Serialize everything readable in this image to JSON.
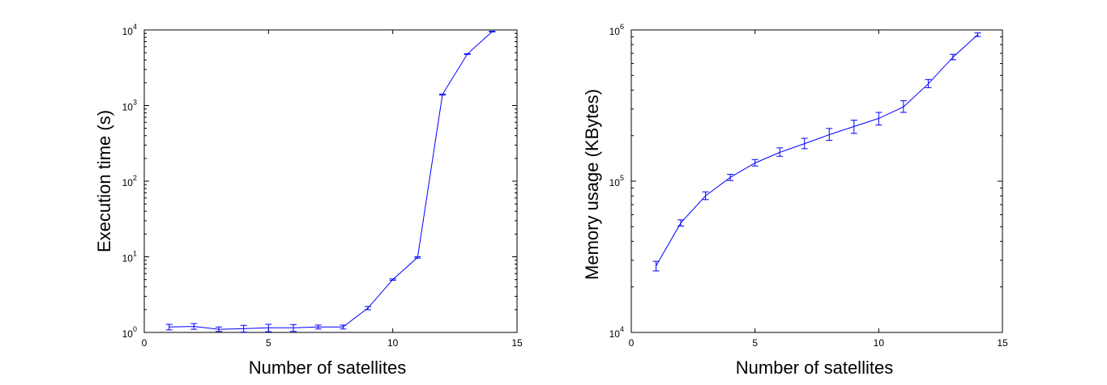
{
  "chart_data": [
    {
      "type": "line",
      "xlabel": "Number of satellites",
      "ylabel": "Execution time (s)",
      "xlim": [
        0,
        15
      ],
      "ylim": [
        1,
        10000
      ],
      "yscale": "log",
      "x_ticks": [
        "0",
        "5",
        "10",
        "15"
      ],
      "y_ticks": [
        {
          "base": "10",
          "exp": "0"
        },
        {
          "base": "10",
          "exp": "1"
        },
        {
          "base": "10",
          "exp": "2"
        },
        {
          "base": "10",
          "exp": "3"
        },
        {
          "base": "10",
          "exp": "4"
        }
      ],
      "grid": false,
      "series": [
        {
          "color": "#0000ff",
          "x": [
            1,
            2,
            3,
            4,
            5,
            6,
            7,
            8,
            9,
            10,
            11,
            12,
            13,
            14
          ],
          "y": [
            1.18,
            1.2,
            1.1,
            1.12,
            1.15,
            1.15,
            1.18,
            1.18,
            2.1,
            5.0,
            9.8,
            1400,
            4800,
            9500
          ],
          "err_low": [
            1.08,
            1.1,
            1.03,
            1.01,
            1.02,
            1.03,
            1.11,
            1.11,
            2.0,
            4.9,
            9.6,
            1380,
            4750,
            9400
          ],
          "err_high": [
            1.28,
            1.31,
            1.18,
            1.24,
            1.28,
            1.27,
            1.25,
            1.25,
            2.2,
            5.1,
            10.0,
            1420,
            4850,
            9600
          ]
        }
      ]
    },
    {
      "type": "line",
      "xlabel": "Number of satellites",
      "ylabel": "Memory usage (KBytes)",
      "xlim": [
        0,
        15
      ],
      "ylim": [
        10000,
        1000000
      ],
      "yscale": "log",
      "x_ticks": [
        "0",
        "5",
        "10",
        "15"
      ],
      "y_ticks": [
        {
          "base": "10",
          "exp": "4"
        },
        {
          "base": "10",
          "exp": "5"
        },
        {
          "base": "10",
          "exp": "6"
        }
      ],
      "grid": false,
      "series": [
        {
          "color": "#0000ff",
          "x": [
            1,
            2,
            3,
            4,
            5,
            6,
            7,
            8,
            9,
            10,
            11,
            12,
            13,
            14
          ],
          "y": [
            27500,
            53000,
            80000,
            106000,
            132000,
            155000,
            177000,
            203000,
            230000,
            260000,
            310000,
            440000,
            660000,
            930000
          ],
          "err_low": [
            25500,
            50500,
            75500,
            101000,
            126000,
            146000,
            164000,
            186000,
            207000,
            235000,
            285000,
            415000,
            635000,
            905000
          ],
          "err_high": [
            29500,
            55500,
            85000,
            111000,
            139000,
            166000,
            192000,
            223000,
            253000,
            285000,
            340000,
            470000,
            690000,
            955000
          ]
        }
      ]
    }
  ]
}
